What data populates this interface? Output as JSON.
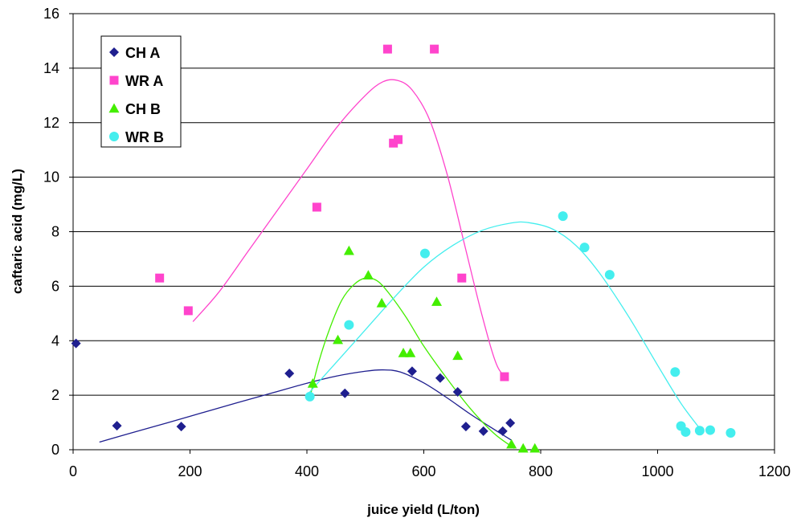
{
  "chart_data": {
    "type": "scatter",
    "title": "",
    "xlabel": "juice yield (L/ton)",
    "ylabel": "caftaric acid (mg/L)",
    "xlim": [
      0,
      1200
    ],
    "ylim": [
      0,
      16
    ],
    "x_ticks": [
      0,
      200,
      400,
      600,
      800,
      1000,
      1200
    ],
    "y_ticks": [
      0,
      2,
      4,
      6,
      8,
      10,
      12,
      14,
      16
    ],
    "grid": "horizontal",
    "legend_position": "top-left",
    "series": [
      {
        "name": "CH A",
        "color": "#1f1f8f",
        "marker": "diamond",
        "points": [
          [
            5,
            3.9
          ],
          [
            75,
            0.88
          ],
          [
            185,
            0.85
          ],
          [
            370,
            2.8
          ],
          [
            465,
            2.07
          ],
          [
            580,
            2.88
          ],
          [
            628,
            2.63
          ],
          [
            658,
            2.12
          ],
          [
            672,
            0.85
          ],
          [
            702,
            0.68
          ],
          [
            735,
            0.68
          ],
          [
            748,
            0.98
          ]
        ],
        "trend": [
          [
            45,
            0.28
          ],
          [
            100,
            0.62
          ],
          [
            160,
            0.98
          ],
          [
            220,
            1.35
          ],
          [
            280,
            1.72
          ],
          [
            340,
            2.08
          ],
          [
            400,
            2.44
          ],
          [
            450,
            2.7
          ],
          [
            500,
            2.88
          ],
          [
            530,
            2.93
          ],
          [
            560,
            2.85
          ],
          [
            600,
            2.45
          ],
          [
            640,
            1.9
          ],
          [
            680,
            1.3
          ],
          [
            720,
            0.75
          ],
          [
            750,
            0.35
          ]
        ]
      },
      {
        "name": "WR A",
        "color": "#ff44cc",
        "marker": "square",
        "points": [
          [
            148,
            6.3
          ],
          [
            197,
            5.1
          ],
          [
            417,
            8.9
          ],
          [
            538,
            14.7
          ],
          [
            548,
            11.25
          ],
          [
            556,
            11.38
          ],
          [
            618,
            14.7
          ],
          [
            665,
            6.3
          ],
          [
            738,
            2.68
          ]
        ],
        "trend": [
          [
            205,
            4.7
          ],
          [
            250,
            5.8
          ],
          [
            300,
            7.3
          ],
          [
            350,
            8.8
          ],
          [
            400,
            10.3
          ],
          [
            450,
            11.8
          ],
          [
            500,
            13.0
          ],
          [
            530,
            13.5
          ],
          [
            555,
            13.55
          ],
          [
            580,
            13.2
          ],
          [
            610,
            12.1
          ],
          [
            640,
            10.1
          ],
          [
            670,
            7.5
          ],
          [
            700,
            4.9
          ],
          [
            725,
            3.1
          ],
          [
            745,
            2.6
          ]
        ]
      },
      {
        "name": "CH B",
        "color": "#44ee00",
        "marker": "triangle",
        "points": [
          [
            410,
            2.43
          ],
          [
            453,
            4.03
          ],
          [
            472,
            7.3
          ],
          [
            505,
            6.4
          ],
          [
            528,
            5.38
          ],
          [
            565,
            3.55
          ],
          [
            577,
            3.55
          ],
          [
            622,
            5.43
          ],
          [
            658,
            3.45
          ],
          [
            750,
            0.2
          ],
          [
            770,
            0.05
          ],
          [
            790,
            0.05
          ]
        ],
        "trend": [
          [
            405,
            1.9
          ],
          [
            420,
            3.2
          ],
          [
            440,
            4.5
          ],
          [
            460,
            5.5
          ],
          [
            480,
            6.05
          ],
          [
            500,
            6.3
          ],
          [
            520,
            6.2
          ],
          [
            540,
            5.75
          ],
          [
            570,
            4.85
          ],
          [
            600,
            3.8
          ],
          [
            640,
            2.6
          ],
          [
            680,
            1.5
          ],
          [
            720,
            0.6
          ],
          [
            755,
            0.05
          ]
        ]
      },
      {
        "name": "WR B",
        "color": "#44eeee",
        "marker": "circle",
        "points": [
          [
            405,
            1.95
          ],
          [
            472,
            4.58
          ],
          [
            602,
            7.2
          ],
          [
            838,
            8.57
          ],
          [
            875,
            7.42
          ],
          [
            918,
            6.42
          ],
          [
            1030,
            2.85
          ],
          [
            1040,
            0.87
          ],
          [
            1048,
            0.65
          ],
          [
            1072,
            0.7
          ],
          [
            1090,
            0.72
          ],
          [
            1125,
            0.62
          ]
        ],
        "trend": [
          [
            400,
            2.0
          ],
          [
            450,
            3.2
          ],
          [
            500,
            4.4
          ],
          [
            550,
            5.6
          ],
          [
            600,
            6.7
          ],
          [
            650,
            7.5
          ],
          [
            700,
            8.05
          ],
          [
            750,
            8.32
          ],
          [
            780,
            8.33
          ],
          [
            820,
            8.1
          ],
          [
            860,
            7.5
          ],
          [
            900,
            6.5
          ],
          [
            950,
            4.9
          ],
          [
            1000,
            3.1
          ],
          [
            1040,
            1.7
          ],
          [
            1075,
            0.7
          ]
        ]
      }
    ]
  }
}
